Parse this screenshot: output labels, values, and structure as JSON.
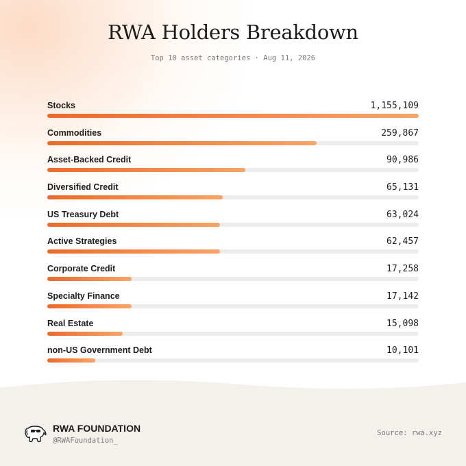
{
  "header": {
    "title": "RWA Holders Breakdown",
    "subtitle": "Top 10 asset categories · Aug 11, 2026"
  },
  "chart_data": {
    "type": "bar",
    "orientation": "horizontal",
    "categories": [
      "Stocks",
      "Commodities",
      "Asset-Backed Credit",
      "Diversified Credit",
      "US Treasury Debt",
      "Active Strategies",
      "Corporate Credit",
      "Specialty Finance",
      "Real Estate",
      "non-US Government Debt"
    ],
    "value_labels": [
      "1,155,109",
      "259,867",
      "90,986",
      "65,131",
      "63,024",
      "62,457",
      "17,258",
      "17,142",
      "15,098",
      "10,101"
    ],
    "values": [
      1155109,
      259867,
      90986,
      65131,
      63024,
      62457,
      17258,
      17142,
      15098,
      10101
    ],
    "scale": "log",
    "colors": {
      "bar_start": "#ec6a2a",
      "bar_end": "#f8a466",
      "track": "#ececea"
    }
  },
  "footer": {
    "brand": "RWA FOUNDATION",
    "handle": "@RWAFoundation_",
    "source": "Source: rwa.xyz",
    "logo_icon": "elephant-sunglasses-icon"
  }
}
